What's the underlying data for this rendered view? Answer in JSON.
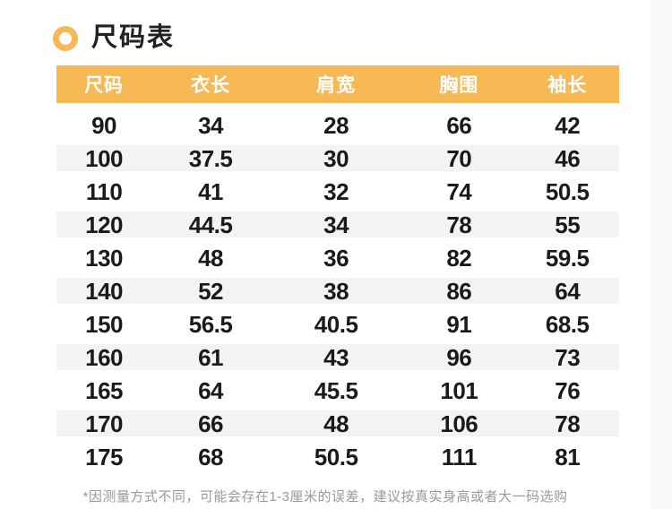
{
  "colors": {
    "accent_orange": "#f7b955",
    "header_text": "#ffffff",
    "stripe_gray": "#f3f3f4",
    "body_text": "#1a1a1a",
    "footnote_gray": "#9a9a9a",
    "gutter_gray": "#f8f8f9"
  },
  "section": {
    "title": "尺码表"
  },
  "table": {
    "columns": [
      "尺码",
      "衣长",
      "肩宽",
      "胸围",
      "袖长"
    ],
    "rows": [
      [
        "90",
        "34",
        "28",
        "66",
        "42"
      ],
      [
        "100",
        "37.5",
        "30",
        "70",
        "46"
      ],
      [
        "110",
        "41",
        "32",
        "74",
        "50.5"
      ],
      [
        "120",
        "44.5",
        "34",
        "78",
        "55"
      ],
      [
        "130",
        "48",
        "36",
        "82",
        "59.5"
      ],
      [
        "140",
        "52",
        "38",
        "86",
        "64"
      ],
      [
        "150",
        "56.5",
        "40.5",
        "91",
        "68.5"
      ],
      [
        "160",
        "61",
        "43",
        "96",
        "73"
      ],
      [
        "165",
        "64",
        "45.5",
        "101",
        "76"
      ],
      [
        "170",
        "66",
        "48",
        "106",
        "78"
      ],
      [
        "175",
        "68",
        "50.5",
        "111",
        "81"
      ]
    ],
    "striped_row_indices": [
      1,
      3,
      5,
      7,
      9
    ]
  },
  "footnote": {
    "text": "*因测量方式不同，可能会存在1-3厘米的误差，建议按真实身高或者大一码选购"
  }
}
